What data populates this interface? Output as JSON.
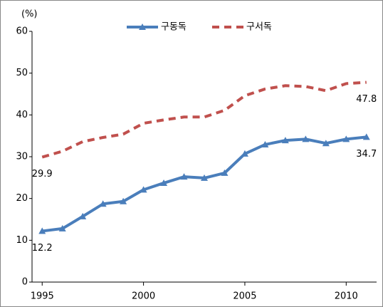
{
  "chart_data": {
    "type": "line",
    "y_label": "(%)",
    "x": [
      1995,
      1996,
      1997,
      1998,
      1999,
      2000,
      2001,
      2002,
      2003,
      2004,
      2005,
      2006,
      2007,
      2008,
      2009,
      2010,
      2011
    ],
    "xlim": [
      1994.5,
      2011.5
    ],
    "xticks": [
      1995,
      2000,
      2005,
      2010
    ],
    "ylim": [
      0,
      60
    ],
    "yticks": [
      0,
      10,
      20,
      30,
      40,
      50,
      60
    ],
    "grid": false,
    "legend": "top",
    "series": [
      {
        "name": "구동독",
        "color": "#4a7ebb",
        "dashed": false,
        "marker": "triangle",
        "values": [
          12.2,
          12.8,
          15.7,
          18.7,
          19.3,
          22.1,
          23.7,
          25.2,
          24.9,
          26.1,
          30.7,
          32.9,
          33.9,
          34.2,
          33.2,
          34.2,
          34.7
        ],
        "value_labels": [
          "12.2",
          null,
          null,
          null,
          null,
          null,
          null,
          null,
          null,
          null,
          null,
          null,
          null,
          null,
          null,
          null,
          "34.7"
        ]
      },
      {
        "name": "구서독",
        "color": "#c0504d",
        "dashed": true,
        "marker": null,
        "values": [
          29.9,
          31.3,
          33.6,
          34.6,
          35.4,
          38.0,
          38.8,
          39.5,
          39.5,
          41.1,
          44.6,
          46.2,
          47.0,
          46.8,
          45.8,
          47.5,
          47.8
        ],
        "value_labels": [
          "29.9",
          null,
          null,
          null,
          null,
          null,
          null,
          null,
          null,
          null,
          null,
          null,
          null,
          null,
          null,
          null,
          "47.8"
        ]
      }
    ]
  }
}
